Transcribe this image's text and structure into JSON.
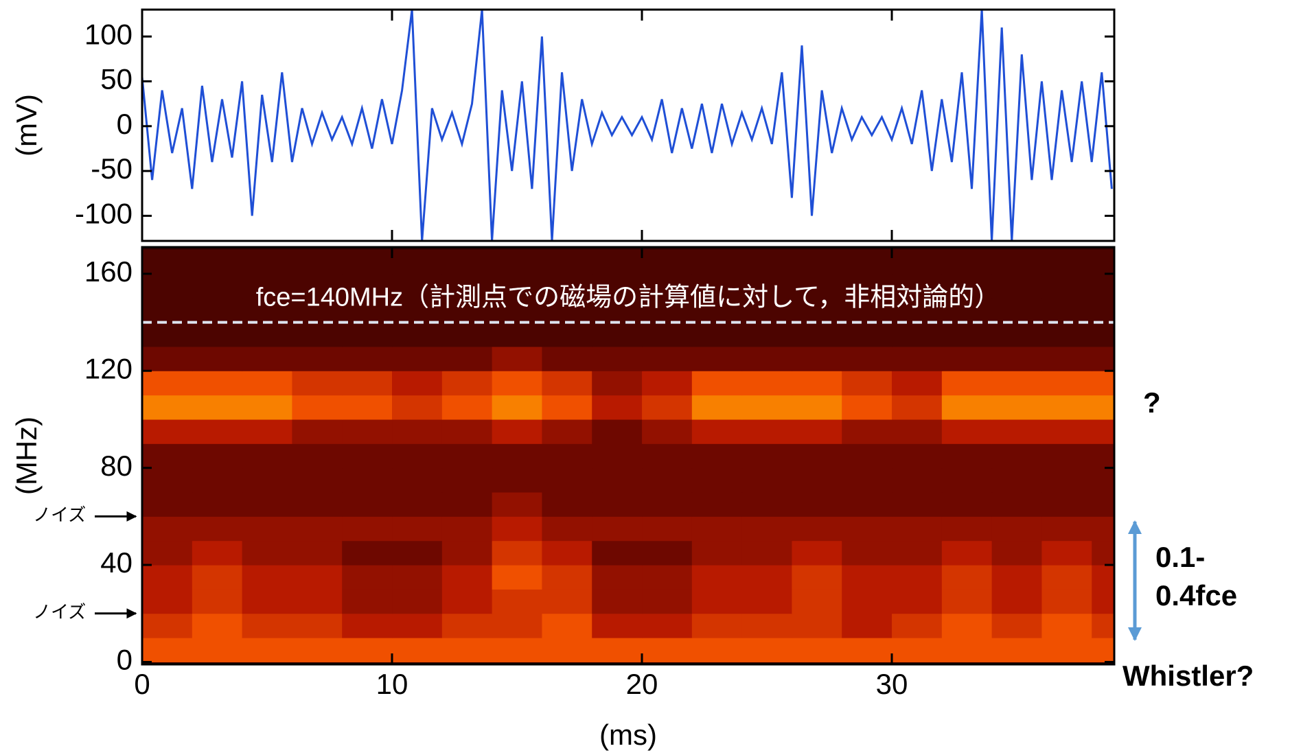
{
  "chart_data": [
    {
      "type": "line",
      "y_label": "(mV)",
      "color": "#1f4fd6",
      "xlim": [
        0,
        38.9
      ],
      "ylim": [
        -128,
        130
      ],
      "yticks": [
        -100,
        -50,
        0,
        50,
        100
      ],
      "x": [
        0,
        0.4,
        0.8,
        1.2,
        1.6,
        2,
        2.4,
        2.8,
        3.2,
        3.6,
        4,
        4.4,
        4.8,
        5.2,
        5.6,
        6,
        6.4,
        6.8,
        7.2,
        7.6,
        8,
        8.4,
        8.8,
        9.2,
        9.6,
        10,
        10.4,
        10.8,
        11.2,
        11.6,
        12,
        12.4,
        12.8,
        13.2,
        13.6,
        14,
        14.4,
        14.8,
        15.2,
        15.6,
        16,
        16.4,
        16.8,
        17.2,
        17.6,
        18,
        18.4,
        18.8,
        19.2,
        19.6,
        20,
        20.4,
        20.8,
        21.2,
        21.6,
        22,
        22.4,
        22.8,
        23.2,
        23.6,
        24,
        24.4,
        24.8,
        25.2,
        25.6,
        26,
        26.4,
        26.8,
        27.2,
        27.6,
        28,
        28.4,
        28.8,
        29.2,
        29.6,
        30,
        30.4,
        30.8,
        31.2,
        31.6,
        32,
        32.4,
        32.8,
        33.2,
        33.6,
        34,
        34.4,
        34.8,
        35.2,
        35.6,
        36,
        36.4,
        36.8,
        37.2,
        37.6,
        38,
        38.4,
        38.8
      ],
      "values": [
        55,
        -60,
        40,
        -30,
        20,
        -70,
        45,
        -40,
        30,
        -35,
        50,
        -100,
        35,
        -40,
        60,
        -40,
        20,
        -20,
        15,
        -15,
        10,
        -20,
        20,
        -25,
        30,
        -20,
        40,
        130,
        -128,
        20,
        -15,
        15,
        -20,
        25,
        130,
        -128,
        40,
        -50,
        50,
        -70,
        100,
        -128,
        60,
        -50,
        30,
        -20,
        15,
        -10,
        10,
        -10,
        10,
        -15,
        30,
        -30,
        20,
        -25,
        25,
        -30,
        25,
        -20,
        15,
        -15,
        20,
        -20,
        60,
        -80,
        90,
        -100,
        40,
        -30,
        20,
        -15,
        10,
        -10,
        10,
        -15,
        20,
        -20,
        40,
        -50,
        30,
        -40,
        60,
        -70,
        130,
        -128,
        110,
        -128,
        80,
        -60,
        50,
        -60,
        40,
        -40,
        50,
        -40,
        60,
        -70
      ]
    },
    {
      "type": "heatmap",
      "x_label": "(ms)",
      "y_label": "(MHz)",
      "xlim": [
        0,
        38.9
      ],
      "ylim": [
        -1,
        171
      ],
      "xticks": [
        0,
        10,
        20,
        30
      ],
      "yticks": [
        0,
        40,
        80,
        120,
        160
      ],
      "xbins": [
        0,
        2,
        4,
        6,
        8,
        10,
        12,
        14,
        16,
        18,
        20,
        22,
        24,
        26,
        28,
        30,
        32,
        34,
        36,
        38,
        38.9
      ],
      "ybins": [
        0,
        10,
        20,
        30,
        40,
        50,
        60,
        70,
        80,
        90,
        100,
        110,
        120,
        130,
        140,
        150,
        160,
        170
      ],
      "zlim": [
        0,
        10
      ],
      "colorscale": [
        "#2a0000",
        "#6e0800",
        "#b81a00",
        "#f05000",
        "#ffb000",
        "#ffff30"
      ],
      "z": [
        [
          6,
          6,
          6,
          6,
          6,
          6,
          6,
          6,
          6,
          6,
          6,
          6,
          6,
          6,
          6,
          6,
          6,
          6,
          6,
          6
        ],
        [
          5,
          6,
          5,
          5,
          4,
          4,
          5,
          5,
          6,
          4,
          4,
          5,
          5,
          5,
          4,
          5,
          6,
          5,
          6,
          5
        ],
        [
          4,
          5,
          4,
          4,
          3,
          3,
          4,
          5,
          5,
          3,
          3,
          4,
          4,
          5,
          4,
          4,
          5,
          4,
          5,
          4
        ],
        [
          4,
          5,
          4,
          4,
          3,
          3,
          4,
          6,
          5,
          3,
          3,
          4,
          4,
          5,
          4,
          4,
          5,
          4,
          5,
          4
        ],
        [
          3,
          4,
          3,
          3,
          2,
          2,
          3,
          5,
          4,
          2,
          2,
          3,
          3,
          4,
          3,
          3,
          4,
          3,
          4,
          3
        ],
        [
          3,
          3,
          3,
          3,
          3,
          3,
          3,
          4,
          3,
          3,
          3,
          3,
          3,
          3,
          3,
          3,
          3,
          3,
          3,
          3
        ],
        [
          2,
          2,
          2,
          2,
          2,
          2,
          2,
          3,
          2,
          2,
          2,
          2,
          2,
          2,
          2,
          2,
          2,
          2,
          2,
          2
        ],
        [
          2,
          2,
          2,
          2,
          2,
          2,
          2,
          2,
          2,
          2,
          2,
          2,
          2,
          2,
          2,
          2,
          2,
          2,
          2,
          2
        ],
        [
          2,
          2,
          2,
          2,
          2,
          2,
          2,
          2,
          2,
          2,
          2,
          2,
          2,
          2,
          2,
          2,
          2,
          2,
          2,
          2
        ],
        [
          4,
          4,
          4,
          3,
          3,
          3,
          3,
          4,
          3,
          2,
          3,
          4,
          4,
          4,
          3,
          3,
          4,
          4,
          4,
          4
        ],
        [
          7,
          7,
          7,
          6,
          6,
          5,
          6,
          7,
          6,
          4,
          5,
          7,
          7,
          7,
          6,
          5,
          7,
          7,
          7,
          7
        ],
        [
          6,
          6,
          6,
          5,
          5,
          4,
          5,
          6,
          5,
          3,
          4,
          6,
          6,
          6,
          5,
          4,
          6,
          6,
          6,
          6
        ],
        [
          2,
          2,
          2,
          2,
          2,
          2,
          2,
          3,
          2,
          2,
          2,
          2,
          2,
          2,
          2,
          2,
          2,
          2,
          2,
          2
        ],
        [
          1,
          1,
          1,
          1,
          1,
          1,
          1,
          1,
          1,
          1,
          1,
          1,
          1,
          1,
          1,
          1,
          1,
          1,
          1,
          1
        ],
        [
          1,
          1,
          1,
          1,
          1,
          1,
          1,
          1,
          1,
          1,
          1,
          1,
          1,
          1,
          1,
          1,
          1,
          1,
          1,
          1
        ],
        [
          1,
          1,
          1,
          1,
          1,
          1,
          1,
          1,
          1,
          1,
          1,
          1,
          1,
          1,
          1,
          1,
          1,
          1,
          1,
          1
        ],
        [
          1,
          1,
          1,
          1,
          1,
          1,
          1,
          1,
          1,
          1,
          1,
          1,
          1,
          1,
          1,
          1,
          1,
          1,
          1,
          1
        ]
      ],
      "fce_line": 140,
      "fce_label": "fce=140MHz（計測点での磁場の計算値に対して，非相対論的）",
      "noise_markers": [
        {
          "text": "ノイズ",
          "y": 60
        },
        {
          "text": "ノイズ",
          "y": 20
        }
      ],
      "annotations": [
        "?",
        "0.1-",
        "0.4fce",
        "Whistler?"
      ]
    }
  ]
}
